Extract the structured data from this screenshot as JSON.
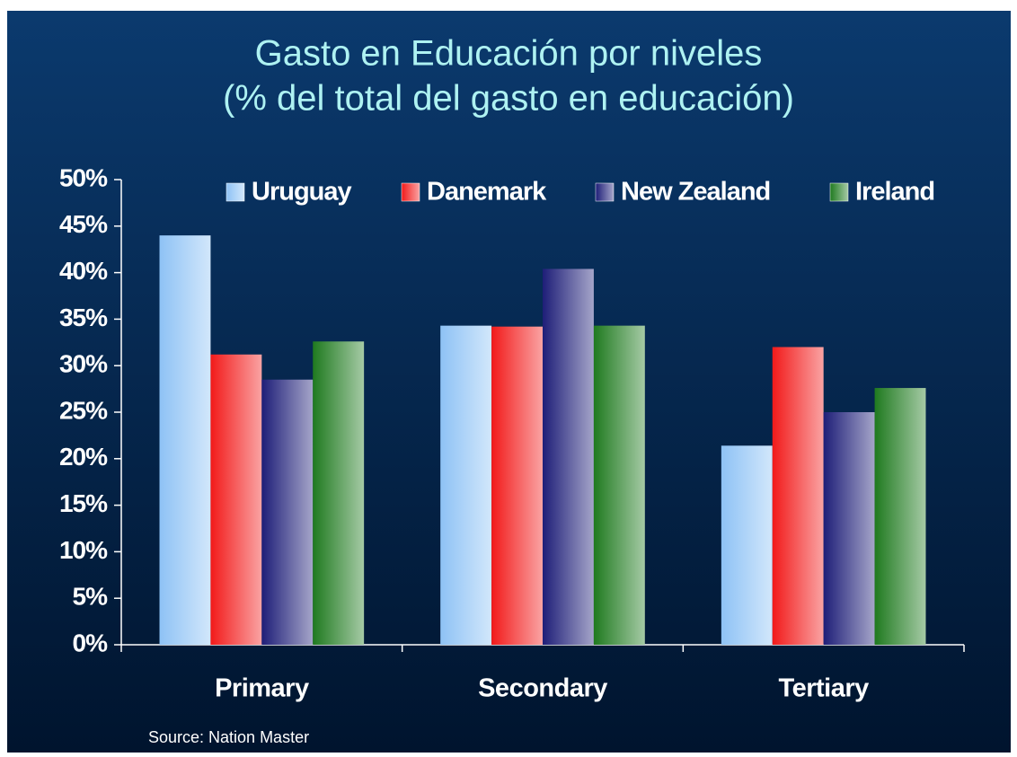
{
  "chart_data": {
    "type": "bar",
    "title": [
      "Gasto en Educación por niveles",
      "(% del total del gasto en educación)"
    ],
    "source": "Source: Nation Master",
    "categories": [
      "Primary",
      "Secondary",
      "Tertiary"
    ],
    "series": [
      {
        "name": "Uruguay",
        "color": "#8ec2f5",
        "values": [
          44,
          34.3,
          21.4
        ]
      },
      {
        "name": "Danemark",
        "color": "#f21a1a",
        "values": [
          31.2,
          34.2,
          32
        ]
      },
      {
        "name": "New Zealand",
        "color": "#1e1e78",
        "values": [
          28.5,
          40.4,
          25
        ]
      },
      {
        "name": "Ireland",
        "color": "#1f7a1f",
        "values": [
          32.6,
          34.3,
          27.6
        ]
      }
    ],
    "ylim": [
      0,
      50
    ],
    "yticks": [
      {
        "value": 0,
        "label": "0%"
      },
      {
        "value": 5,
        "label": "5%"
      },
      {
        "value": 10,
        "label": "10%"
      },
      {
        "value": 15,
        "label": "15%"
      },
      {
        "value": 20,
        "label": "20%"
      },
      {
        "value": 25,
        "label": "25%"
      },
      {
        "value": 30,
        "label": "30%"
      },
      {
        "value": 35,
        "label": "35%"
      },
      {
        "value": 40,
        "label": "40%"
      },
      {
        "value": 45,
        "label": "45%"
      },
      {
        "value": 50,
        "label": "50%"
      }
    ],
    "legend": "top"
  }
}
